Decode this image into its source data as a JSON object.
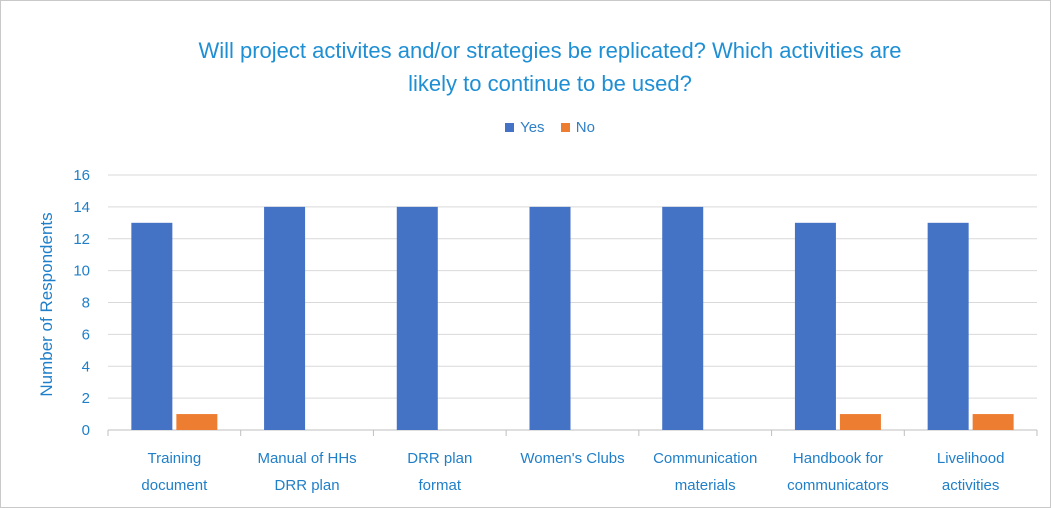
{
  "chart_data": {
    "type": "bar",
    "title_lines": [
      "Will project activites and/or strategies be replicated? Which activities are",
      "likely to continue to be used?"
    ],
    "xlabel": "",
    "ylabel": "Number of Respondents",
    "ylim": [
      0,
      16
    ],
    "yticks": [
      "0",
      "2",
      "4",
      "6",
      "8",
      "10",
      "12",
      "14",
      "16"
    ],
    "grid": true,
    "legend_position": "top",
    "categories": [
      [
        "Training",
        "document"
      ],
      [
        "Manual of HHs",
        "DRR plan"
      ],
      [
        "DRR plan",
        "format"
      ],
      [
        "Women's Clubs"
      ],
      [
        "Communication",
        "materials"
      ],
      [
        "Handbook for",
        "communicators"
      ],
      [
        "Livelihood",
        "activities"
      ]
    ],
    "series": [
      {
        "name": "Yes",
        "color": "#4472c4",
        "values": [
          13,
          14,
          14,
          14,
          14,
          13,
          13
        ]
      },
      {
        "name": "No",
        "color": "#ed7d31",
        "values": [
          1,
          0,
          0,
          0,
          0,
          1,
          1
        ]
      }
    ]
  }
}
